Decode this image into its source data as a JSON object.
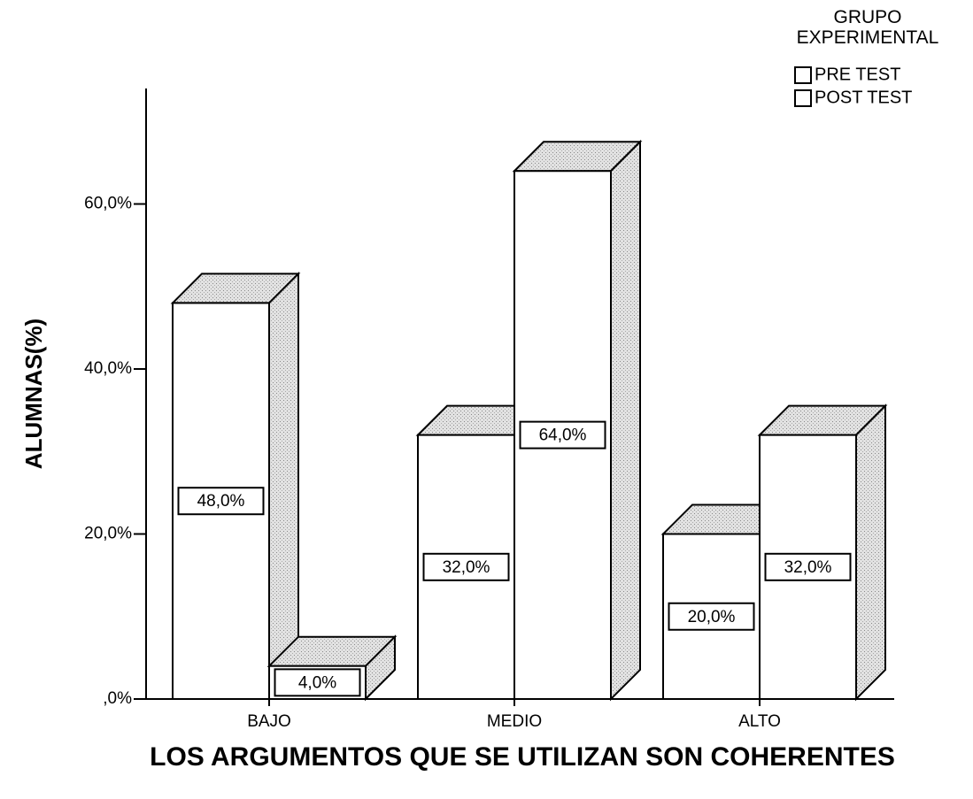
{
  "chart_data": {
    "type": "bar3d",
    "x_label": "LOS ARGUMENTOS QUE SE UTILIZAN SON COHERENTES",
    "y_label": "ALUMNAS(%)",
    "legend_title": "GRUPO EXPERIMENTAL",
    "categories": [
      "BAJO",
      "MEDIO",
      "ALTO"
    ],
    "series": [
      {
        "name": "PRE TEST",
        "color": "#ffffff",
        "values": [
          48,
          32,
          20
        ],
        "value_labels": [
          "48,0%",
          "32,0%",
          "20,0%"
        ]
      },
      {
        "name": "POST TEST",
        "color": "#ffffff",
        "values": [
          4,
          64,
          32
        ],
        "value_labels": [
          "4,0%",
          "64,0%",
          "32,0%"
        ]
      }
    ],
    "ylim": [
      0,
      74
    ],
    "yticks": [
      {
        "value": 0,
        "label": ",0%"
      },
      {
        "value": 20,
        "label": "20,0%"
      },
      {
        "value": 40,
        "label": "40,0%"
      },
      {
        "value": 60,
        "label": "60,0%"
      }
    ],
    "legend": "top-right"
  }
}
